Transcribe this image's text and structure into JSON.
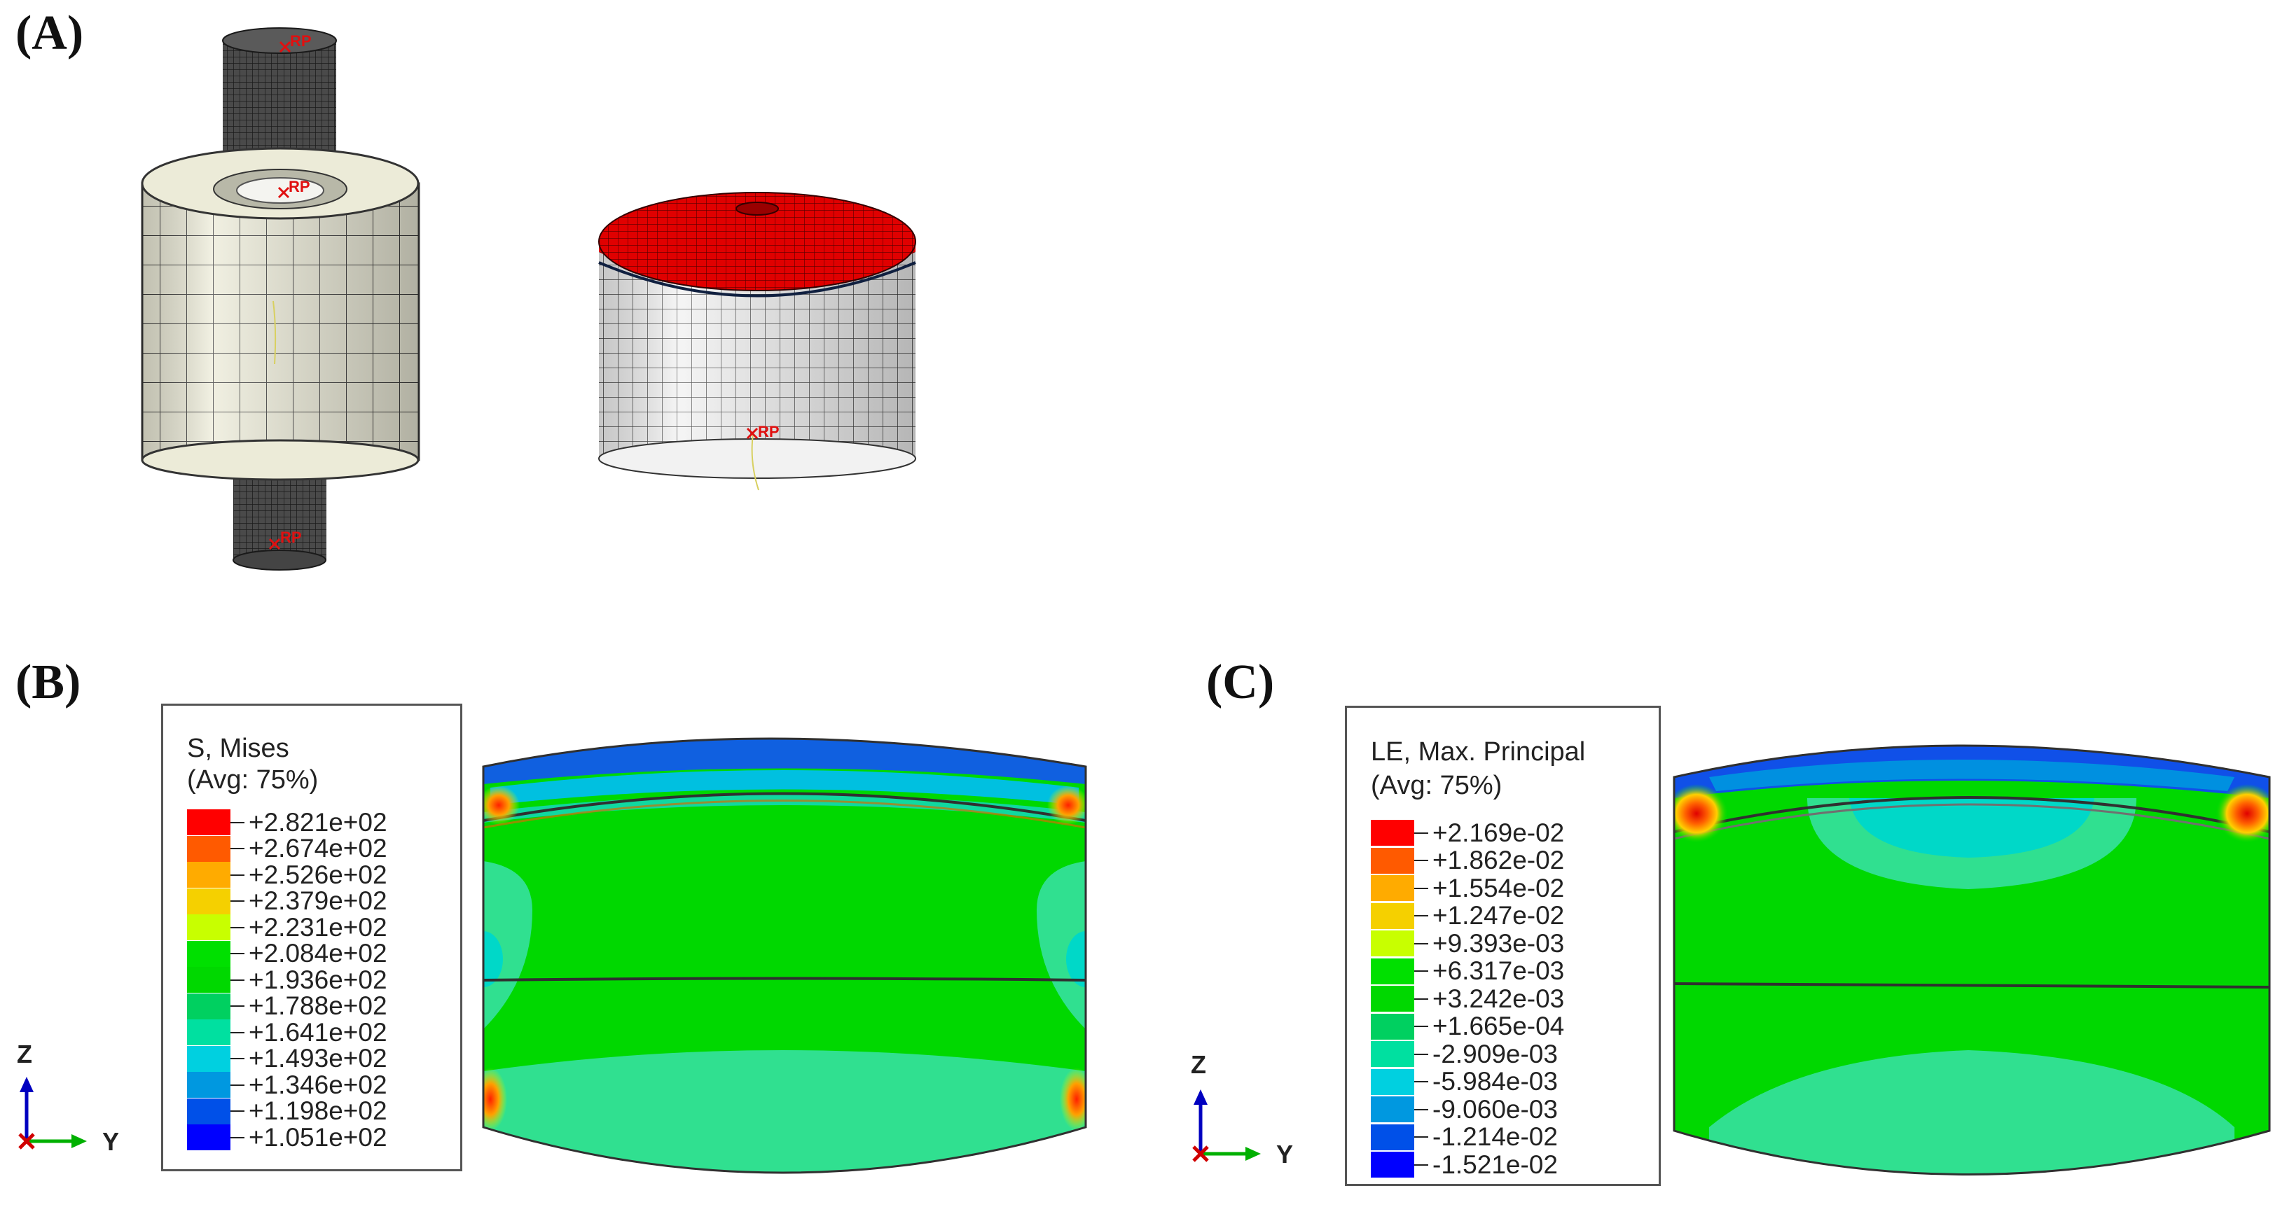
{
  "panels": {
    "a": {
      "label": "(A)",
      "rp_marker": "RP"
    },
    "b": {
      "label": "(B)",
      "legend_title_1": "S, Mises",
      "legend_title_2": "(Avg: 75%)",
      "values": [
        "+2.821e+02",
        "+2.674e+02",
        "+2.526e+02",
        "+2.379e+02",
        "+2.231e+02",
        "+2.084e+02",
        "+1.936e+02",
        "+1.788e+02",
        "+1.641e+02",
        "+1.493e+02",
        "+1.346e+02",
        "+1.198e+02",
        "+1.051e+02"
      ]
    },
    "c": {
      "label": "(C)",
      "legend_title_1": "LE, Max. Principal",
      "legend_title_2": "(Avg: 75%)",
      "values": [
        "+2.169e-02",
        "+1.862e-02",
        "+1.554e-02",
        "+1.247e-02",
        "+9.393e-03",
        "+6.317e-03",
        "+3.242e-03",
        "+1.665e-04",
        "-2.909e-03",
        "-5.984e-03",
        "-9.060e-03",
        "-1.214e-02",
        "-1.521e-02"
      ]
    }
  },
  "triad": {
    "z": "Z",
    "y": "Y"
  },
  "colors": {
    "contour_scale": [
      "#ff0000",
      "#ff5a00",
      "#ffab00",
      "#f5d000",
      "#c8ff00",
      "#00e000",
      "#00d800",
      "#00d060",
      "#00e0a0",
      "#00d0e0",
      "#0098e0",
      "#0050e8",
      "#0000ff"
    ],
    "mesh_dark": "#4a4a4a",
    "mesh_light": "#ecebd8",
    "cap_red": "#e00000",
    "contour_green": "#00d800",
    "contour_light_green": "#30e090",
    "contour_cyan": "#00d8c8",
    "contour_blue": "#1060e0"
  }
}
